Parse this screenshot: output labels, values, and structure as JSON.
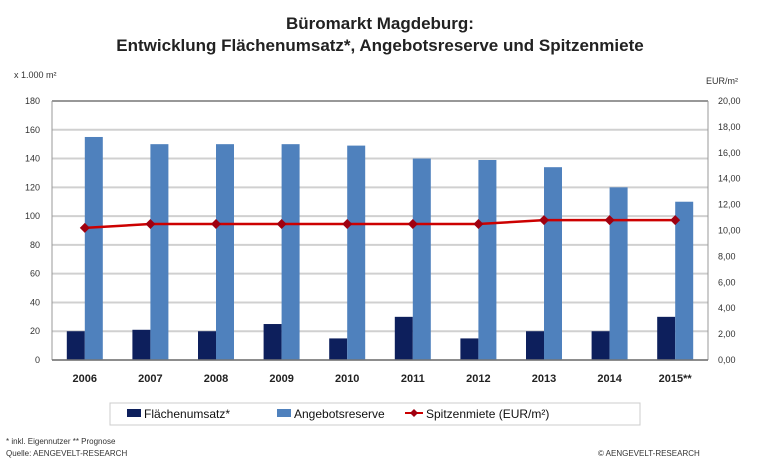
{
  "chart_data": {
    "type": "bar",
    "title": "Büromarkt Magdeburg:",
    "subtitle": "Entwicklung Flächenumsatz*, Angebotsreserve und Spitzenmiete",
    "ylabel": "x 1.000 m²",
    "y2label": "EUR/m²",
    "ylim": [
      0,
      180
    ],
    "y2lim": [
      0,
      20
    ],
    "yticks": [
      "0",
      "20",
      "40",
      "60",
      "80",
      "100",
      "120",
      "140",
      "160",
      "180"
    ],
    "y2ticks": [
      "0,00",
      "2,00",
      "4,00",
      "6,00",
      "8,00",
      "10,00",
      "12,00",
      "14,00",
      "16,00",
      "18,00",
      "20,00"
    ],
    "categories": [
      "2006",
      "2007",
      "2008",
      "2009",
      "2010",
      "2011",
      "2012",
      "2013",
      "2014",
      "2015**"
    ],
    "grid": true,
    "legend_position": "bottom",
    "series": [
      {
        "name": "Flächenumsatz*",
        "type": "bar",
        "axis": "left",
        "color": "#0d1f5c",
        "values": [
          20,
          21,
          20,
          25,
          15,
          30,
          15,
          20,
          20,
          30
        ]
      },
      {
        "name": "Angebotsreserve",
        "type": "bar",
        "axis": "left",
        "color": "#4f81bd",
        "values": [
          155,
          150,
          150,
          150,
          149,
          140,
          139,
          134,
          120,
          110
        ]
      },
      {
        "name": "Spitzenmiete (EUR/m²)",
        "type": "line",
        "axis": "right",
        "color": "#cc0000",
        "values": [
          10.2,
          10.5,
          10.5,
          10.5,
          10.5,
          10.5,
          10.5,
          10.8,
          10.8,
          10.8
        ]
      }
    ]
  },
  "footnotes": {
    "note": "* inkl. Eigennutzer   ** Prognose",
    "source": "Quelle: AENGEVELT-RESEARCH",
    "copyright": "© AENGEVELT-RESEARCH"
  }
}
